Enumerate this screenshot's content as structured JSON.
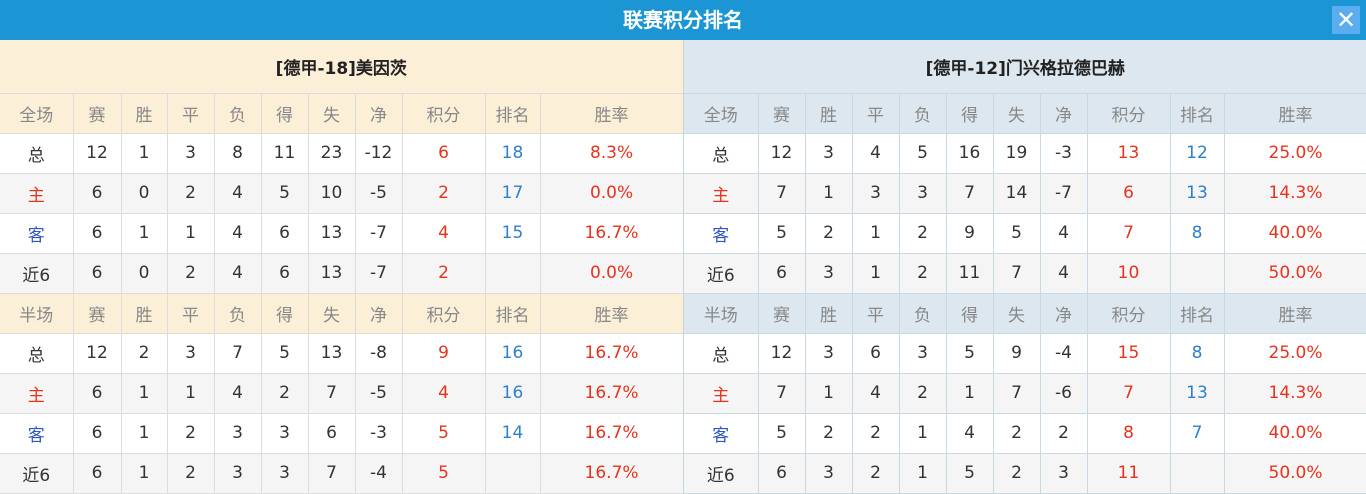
{
  "title": "联赛积分排名",
  "close_icon": "close-icon",
  "columns": {
    "full": [
      "全场",
      "赛",
      "胜",
      "平",
      "负",
      "得",
      "失",
      "净",
      "积分",
      "排名",
      "胜率"
    ],
    "half": [
      "半场",
      "赛",
      "胜",
      "平",
      "负",
      "得",
      "失",
      "净",
      "积分",
      "排名",
      "胜率"
    ]
  },
  "teams": [
    {
      "name": "[德甲-18]美因茨",
      "full": [
        [
          "总",
          "12",
          "1",
          "3",
          "8",
          "11",
          "23",
          "-12",
          "6",
          "18",
          "8.3%"
        ],
        [
          "主",
          "6",
          "0",
          "2",
          "4",
          "5",
          "10",
          "-5",
          "2",
          "17",
          "0.0%"
        ],
        [
          "客",
          "6",
          "1",
          "1",
          "4",
          "6",
          "13",
          "-7",
          "4",
          "15",
          "16.7%"
        ],
        [
          "近6",
          "6",
          "0",
          "2",
          "4",
          "6",
          "13",
          "-7",
          "2",
          "",
          "0.0%"
        ]
      ],
      "half": [
        [
          "总",
          "12",
          "2",
          "3",
          "7",
          "5",
          "13",
          "-8",
          "9",
          "16",
          "16.7%"
        ],
        [
          "主",
          "6",
          "1",
          "1",
          "4",
          "2",
          "7",
          "-5",
          "4",
          "16",
          "16.7%"
        ],
        [
          "客",
          "6",
          "1",
          "2",
          "3",
          "3",
          "6",
          "-3",
          "5",
          "14",
          "16.7%"
        ],
        [
          "近6",
          "6",
          "1",
          "2",
          "3",
          "3",
          "7",
          "-4",
          "5",
          "",
          "16.7%"
        ]
      ]
    },
    {
      "name": "[德甲-12]门兴格拉德巴赫",
      "full": [
        [
          "总",
          "12",
          "3",
          "4",
          "5",
          "16",
          "19",
          "-3",
          "13",
          "12",
          "25.0%"
        ],
        [
          "主",
          "7",
          "1",
          "3",
          "3",
          "7",
          "14",
          "-7",
          "6",
          "13",
          "14.3%"
        ],
        [
          "客",
          "5",
          "2",
          "1",
          "2",
          "9",
          "5",
          "4",
          "7",
          "8",
          "40.0%"
        ],
        [
          "近6",
          "6",
          "3",
          "1",
          "2",
          "11",
          "7",
          "4",
          "10",
          "",
          "50.0%"
        ]
      ],
      "half": [
        [
          "总",
          "12",
          "3",
          "6",
          "3",
          "5",
          "9",
          "-4",
          "15",
          "8",
          "25.0%"
        ],
        [
          "主",
          "7",
          "1",
          "4",
          "2",
          "1",
          "7",
          "-6",
          "7",
          "13",
          "14.3%"
        ],
        [
          "客",
          "5",
          "2",
          "2",
          "1",
          "4",
          "2",
          "2",
          "8",
          "7",
          "40.0%"
        ],
        [
          "近6",
          "6",
          "3",
          "2",
          "1",
          "5",
          "2",
          "3",
          "11",
          "",
          "50.0%"
        ]
      ]
    }
  ]
}
